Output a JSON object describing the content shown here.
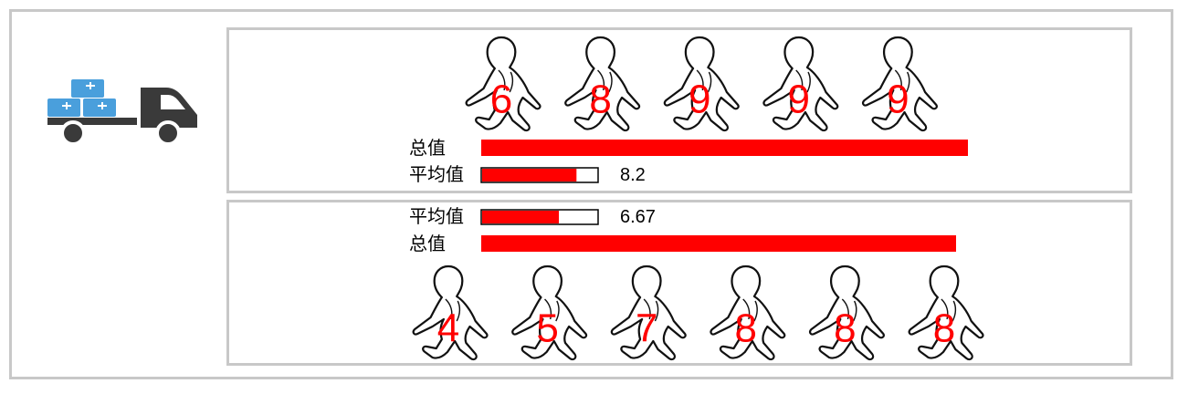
{
  "colors": {
    "accent": "#ff0000",
    "border": "#c8c8c8",
    "box": "#4a9fdc",
    "truck": "#3a3a3a"
  },
  "icons": {
    "truck": "delivery-truck-icon",
    "person": "walking-person-icon"
  },
  "labels": {
    "total": "总值",
    "average": "平均值"
  },
  "chart_data": [
    {
      "type": "pictograph",
      "values": [
        6,
        8,
        9,
        9,
        9
      ],
      "total": {
        "label": "总值",
        "value": 41
      },
      "average": {
        "label": "平均值",
        "value": 8.2,
        "display": "8.2",
        "max": 10
      },
      "order": "figures-top"
    },
    {
      "type": "pictograph",
      "values": [
        4,
        5,
        7,
        8,
        8,
        8
      ],
      "total": {
        "label": "总值",
        "value": 40
      },
      "average": {
        "label": "平均值",
        "value": 6.67,
        "display": "6.67",
        "max": 10
      },
      "order": "figures-bottom"
    }
  ]
}
